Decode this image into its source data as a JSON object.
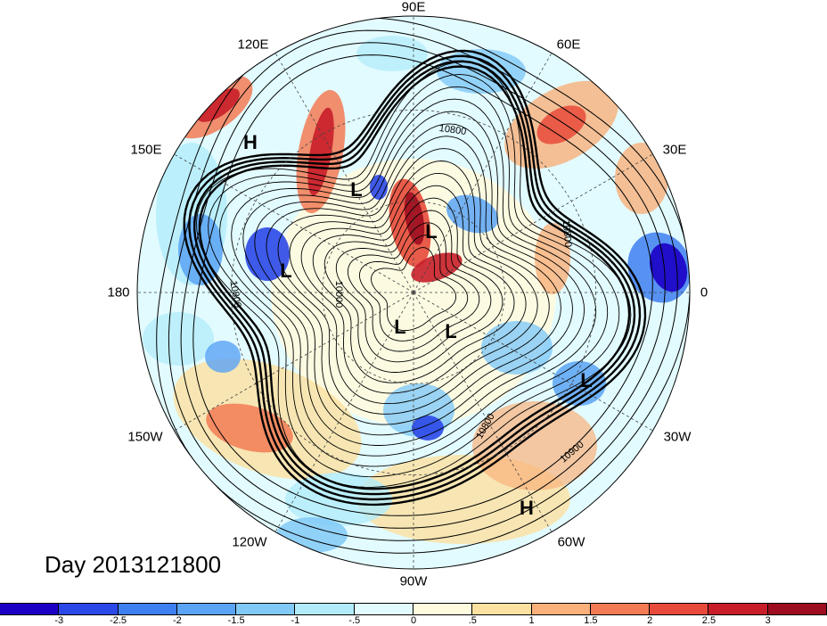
{
  "title": "Day 2013121800",
  "longitude_labels": [
    "90E",
    "60E",
    "30E",
    "0",
    "30W",
    "60W",
    "90W",
    "120W",
    "150W",
    "180",
    "150E",
    "120E"
  ],
  "pressure_centers": [
    "H",
    "L",
    "L",
    "L",
    "L",
    "L",
    "L",
    "H"
  ],
  "contour_labels": [
    "10800",
    "10800",
    "10900",
    "10800",
    "10000",
    "10800"
  ],
  "colorbar": {
    "ticks": [
      "-3",
      "-2.5",
      "-2",
      "-1.5",
      "-1",
      "-.5",
      "0",
      ".5",
      "1",
      "1.5",
      "2",
      "2.5",
      "3"
    ],
    "colors": [
      "#1c00c6",
      "#2b48e8",
      "#3e7ff1",
      "#5aa3f5",
      "#81c9f7",
      "#b2ecfb",
      "#e2fbff",
      "#fffbdf",
      "#fde1a0",
      "#f9b07a",
      "#f27a55",
      "#e74a3a",
      "#c81e29",
      "#9e0d1f"
    ]
  },
  "map_type": "polar stereographic, Northern Hemisphere anomaly with geopotential height contours"
}
